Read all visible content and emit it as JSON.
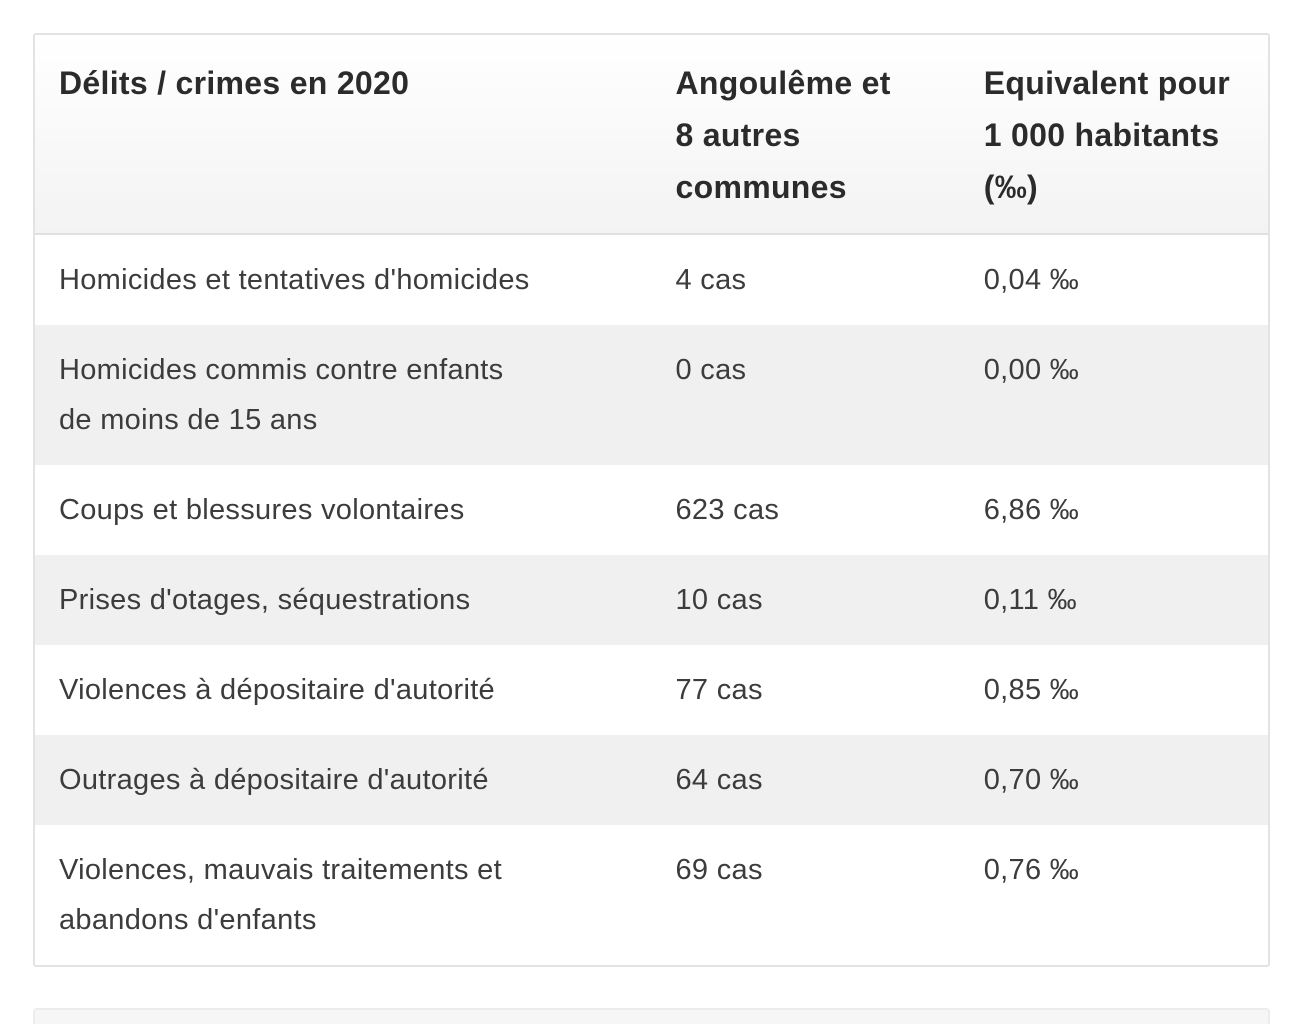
{
  "colors": {
    "row_alt": "#f0f0f0",
    "border": "#e3e3e3",
    "header_text": "#2b2b2b",
    "body_text": "#3c3c3c",
    "header_gradient_top": "#ffffff",
    "header_gradient_bottom": "#f3f3f3"
  },
  "table": {
    "columns": [
      {
        "id": "label",
        "label": "Délits / crimes en 2020"
      },
      {
        "id": "count",
        "label": "Angoulême et\n8 autres\ncommunes"
      },
      {
        "id": "rate",
        "label": "Equivalent pour\n1 000 habitants\n(‰)"
      }
    ],
    "rows": [
      {
        "label": "Homicides et tentatives d'homicides",
        "count": "4 cas",
        "rate": "0,04 ‰"
      },
      {
        "label": "Homicides commis contre enfants\nde moins de 15 ans",
        "count": "0 cas",
        "rate": "0,00 ‰"
      },
      {
        "label": "Coups et blessures volontaires",
        "count": "623 cas",
        "rate": "6,86 ‰"
      },
      {
        "label": "Prises d'otages, séquestrations",
        "count": "10 cas",
        "rate": "0,11 ‰"
      },
      {
        "label": "Violences à dépositaire d'autorité",
        "count": "77 cas",
        "rate": "0,85 ‰"
      },
      {
        "label": "Outrages à dépositaire d'autorité",
        "count": "64 cas",
        "rate": "0,70 ‰"
      },
      {
        "label": "Violences, mauvais traitements et\nabandons d'enfants",
        "count": "69 cas",
        "rate": "0,76 ‰"
      }
    ]
  }
}
